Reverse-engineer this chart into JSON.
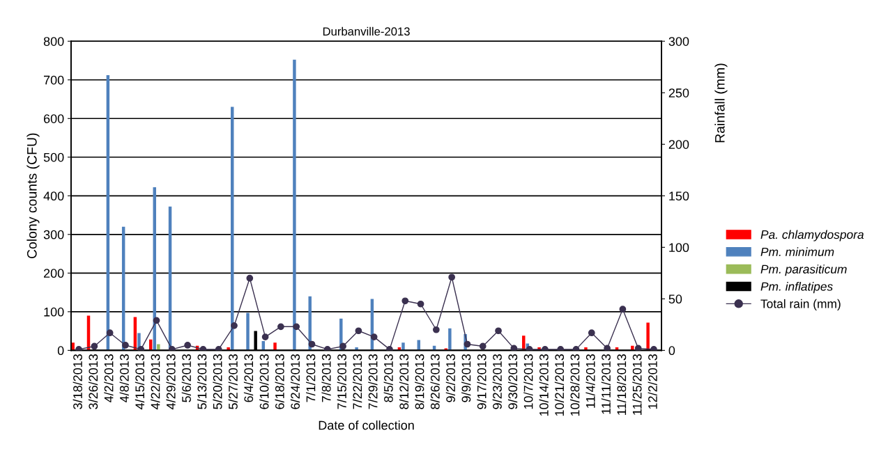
{
  "chart_data": {
    "type": "bar",
    "title": "Durbanville-2013",
    "xlabel": "Date of collection",
    "ylabel": "Colony counts (CFU)",
    "y2label": "Rainfall (mm)",
    "categories": [
      "3/18/2013",
      "3/26/2013",
      "4/2/2013",
      "4/8/2013",
      "4/15/2013",
      "4/22/2013",
      "4/29/2013",
      "5/6/2013",
      "5/13/2013",
      "5/20/2013",
      "5/27/2013",
      "6/4/2013",
      "6/10/2013",
      "6/18/2013",
      "6/24/2013",
      "7/1/2013",
      "7/8/2013",
      "7/15/2013",
      "7/22/2013",
      "7/29/2013",
      "8/5/2013",
      "8/12/2013",
      "8/19/2013",
      "8/26/2013",
      "9/2/2013",
      "9/9/2013",
      "9/17/2013",
      "9/23/2013",
      "9/30/2013",
      "10/7/2013",
      "10/14/2013",
      "10/21/2013",
      "10/28/2013",
      "11/4/2013",
      "11/11/2013",
      "11/18/2013",
      "11/25/2013",
      "12/2/2013"
    ],
    "series": [
      {
        "name": "Pa. chlamydospora",
        "color": "#ff0000",
        "values": [
          20,
          90,
          0,
          0,
          86,
          28,
          0,
          0,
          12,
          0,
          8,
          0,
          0,
          20,
          0,
          0,
          0,
          0,
          0,
          0,
          0,
          8,
          0,
          0,
          5,
          0,
          0,
          0,
          0,
          38,
          8,
          0,
          0,
          8,
          0,
          8,
          12,
          72
        ]
      },
      {
        "name": "Pm. minimum",
        "color": "#4f81bd",
        "values": [
          0,
          0,
          712,
          320,
          45,
          422,
          372,
          0,
          0,
          0,
          630,
          97,
          24,
          0,
          752,
          140,
          0,
          82,
          8,
          133,
          0,
          20,
          27,
          12,
          57,
          42,
          0,
          0,
          0,
          18,
          0,
          0,
          0,
          0,
          0,
          0,
          0,
          0
        ]
      },
      {
        "name": "Pm. parasiticum",
        "color": "#9bbb59",
        "values": [
          0,
          0,
          0,
          0,
          0,
          16,
          0,
          0,
          0,
          0,
          0,
          0,
          0,
          0,
          0,
          0,
          0,
          0,
          0,
          0,
          0,
          0,
          0,
          0,
          0,
          0,
          0,
          0,
          0,
          0,
          0,
          0,
          0,
          0,
          0,
          0,
          0,
          0
        ]
      },
      {
        "name": "Pm. inflatipes",
        "color": "#000000",
        "values": [
          0,
          0,
          0,
          0,
          0,
          0,
          0,
          0,
          0,
          0,
          0,
          50,
          0,
          0,
          0,
          0,
          0,
          0,
          0,
          0,
          0,
          0,
          0,
          0,
          0,
          0,
          0,
          0,
          0,
          0,
          0,
          0,
          0,
          0,
          0,
          0,
          0,
          0
        ]
      },
      {
        "name": "Total rain (mm)",
        "type": "line",
        "axis": "y2",
        "color": "#3b3150",
        "marker": "circle",
        "values": [
          1,
          4,
          17,
          5,
          1,
          29,
          1,
          5,
          1,
          1,
          24,
          70,
          13,
          23,
          23,
          6,
          1,
          4,
          19,
          13,
          1,
          48,
          45,
          20,
          71,
          6,
          4,
          19,
          2,
          1,
          1,
          1,
          1,
          17,
          2,
          40,
          2,
          1
        ]
      }
    ],
    "ylim": [
      0,
      800
    ],
    "yticks": [
      0,
      100,
      200,
      300,
      400,
      500,
      600,
      700,
      800
    ],
    "y2lim": [
      0,
      300
    ],
    "y2ticks": [
      0,
      50,
      100,
      150,
      200,
      250,
      300
    ],
    "grid": "y",
    "legend": "right"
  }
}
